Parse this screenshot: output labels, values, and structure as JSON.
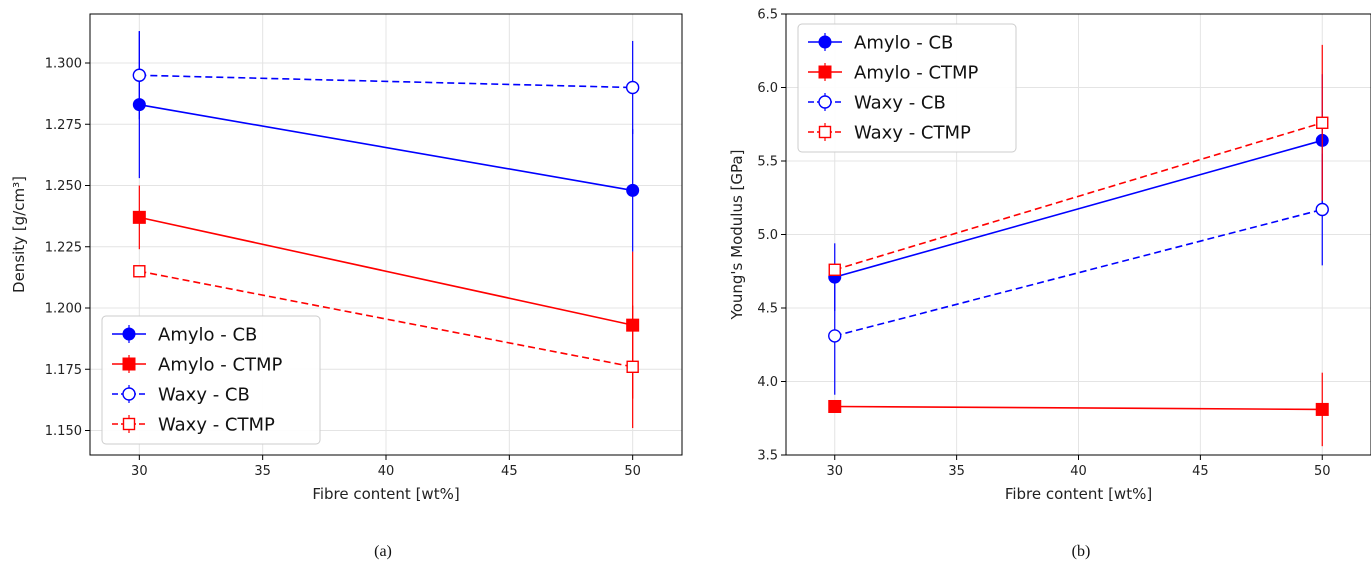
{
  "chart_data": [
    {
      "panel": "a",
      "caption": "(a)",
      "type": "line",
      "xlabel": "Fibre content [wt%]",
      "ylabel": "Density [g/cm³]",
      "xlim": [
        28,
        52
      ],
      "ylim": [
        1.14,
        1.32
      ],
      "xticks": [
        30,
        35,
        40,
        45,
        50
      ],
      "xtick_labels": [
        "30",
        "35",
        "40",
        "45",
        "50"
      ],
      "yticks": [
        1.15,
        1.175,
        1.2,
        1.225,
        1.25,
        1.275,
        1.3
      ],
      "ytick_labels": [
        "1.150",
        "1.175",
        "1.200",
        "1.225",
        "1.250",
        "1.275",
        "1.300"
      ],
      "grid": true,
      "legend_position": "bottom-left",
      "series": [
        {
          "name": "Amylo - CB",
          "color": "#0000ff",
          "dash": "solid",
          "marker": "circle-filled",
          "x": [
            30,
            50
          ],
          "y": [
            1.283,
            1.248
          ],
          "err": [
            0.03,
            0.025
          ]
        },
        {
          "name": "Amylo - CTMP",
          "color": "#ff0000",
          "dash": "solid",
          "marker": "square-filled",
          "x": [
            30,
            50
          ],
          "y": [
            1.237,
            1.193
          ],
          "err": [
            0.013,
            0.03
          ]
        },
        {
          "name": "Waxy - CB",
          "color": "#0000ff",
          "dash": "dashed",
          "marker": "circle-open",
          "x": [
            30,
            50
          ],
          "y": [
            1.295,
            1.29
          ],
          "err": [
            0.018,
            0.019
          ]
        },
        {
          "name": "Waxy - CTMP",
          "color": "#ff0000",
          "dash": "dashed",
          "marker": "square-open",
          "x": [
            30,
            50
          ],
          "y": [
            1.215,
            1.176
          ],
          "err": [
            0.0,
            0.025
          ]
        }
      ]
    },
    {
      "panel": "b",
      "caption": "(b)",
      "type": "line",
      "xlabel": "Fibre content [wt%]",
      "ylabel": "Young's Modulus [GPa]",
      "xlim": [
        28,
        52
      ],
      "ylim": [
        3.5,
        6.5
      ],
      "xticks": [
        30,
        35,
        40,
        45,
        50
      ],
      "xtick_labels": [
        "30",
        "35",
        "40",
        "45",
        "50"
      ],
      "yticks": [
        3.5,
        4.0,
        4.5,
        5.0,
        5.5,
        6.0,
        6.5
      ],
      "ytick_labels": [
        "3.5",
        "4.0",
        "4.5",
        "5.0",
        "5.5",
        "6.0",
        "6.5"
      ],
      "grid": true,
      "legend_position": "top-left",
      "series": [
        {
          "name": "Amylo - CB",
          "color": "#0000ff",
          "dash": "solid",
          "marker": "circle-filled",
          "x": [
            30,
            50
          ],
          "y": [
            4.71,
            5.64
          ],
          "err": [
            0.23,
            0.45
          ]
        },
        {
          "name": "Amylo - CTMP",
          "color": "#ff0000",
          "dash": "solid",
          "marker": "square-filled",
          "x": [
            30,
            50
          ],
          "y": [
            3.83,
            3.81
          ],
          "err": [
            0.0,
            0.25
          ]
        },
        {
          "name": "Waxy - CB",
          "color": "#0000ff",
          "dash": "dashed",
          "marker": "circle-open",
          "x": [
            30,
            50
          ],
          "y": [
            4.31,
            5.17
          ],
          "err": [
            0.4,
            0.38
          ]
        },
        {
          "name": "Waxy - CTMP",
          "color": "#ff0000",
          "dash": "dashed",
          "marker": "square-open",
          "x": [
            30,
            50
          ],
          "y": [
            4.76,
            5.76
          ],
          "err": [
            0.0,
            0.53
          ]
        }
      ]
    }
  ]
}
